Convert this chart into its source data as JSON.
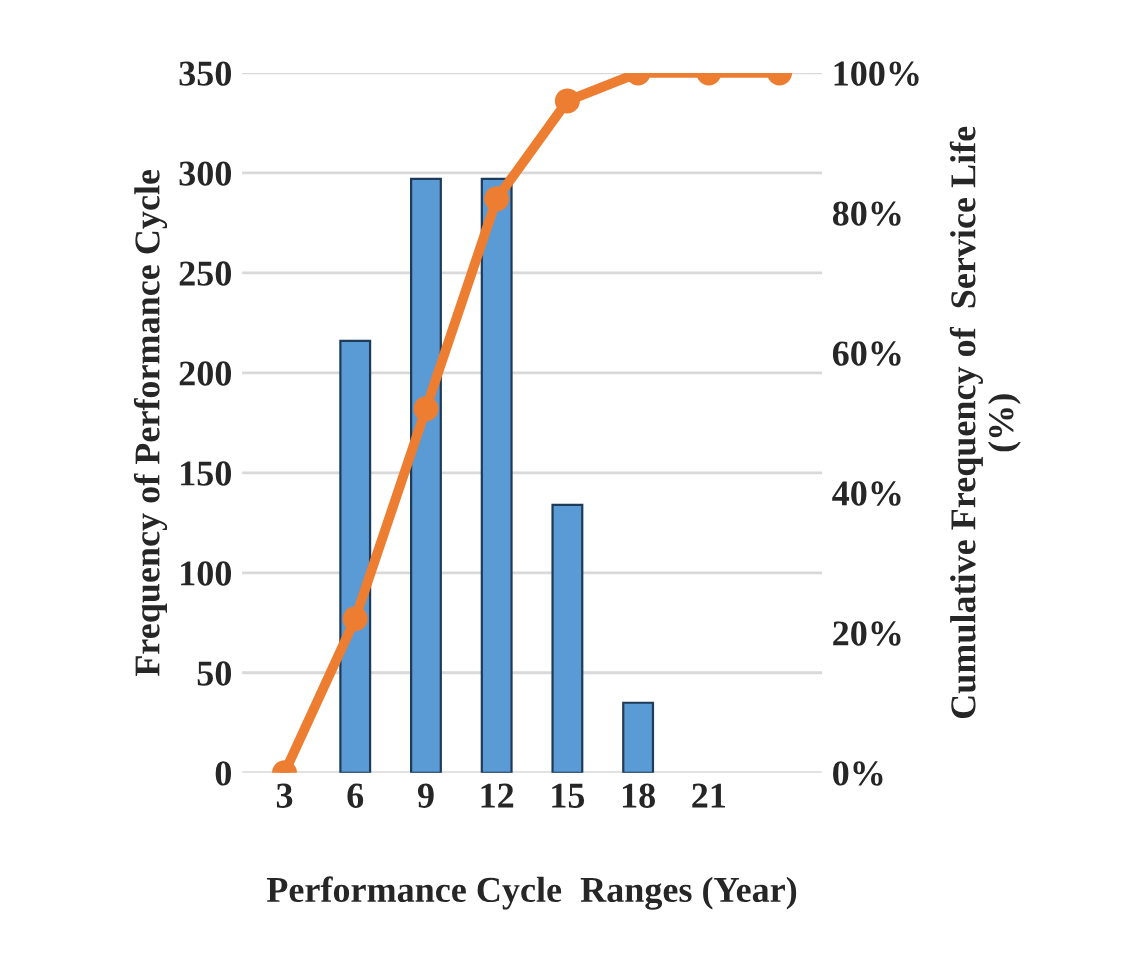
{
  "chart_data": {
    "type": "bar",
    "xlabel": "Performance Cycle  Ranges (Year)",
    "ylabel": "Frequency of Performance Cycle",
    "y2label": "Cumulative Frequency of  Service Life\n(%)",
    "categories": [
      "3",
      "6",
      "9",
      "12",
      "15",
      "18",
      "21",
      null
    ],
    "series": [
      {
        "color": "#5b9bd5",
        "values": [
          null,
          216,
          297,
          297,
          134,
          35,
          null,
          null
        ]
      },
      {
        "type": "line",
        "axis": "y2",
        "color": "#ed7d31",
        "marker": "circle",
        "values": [
          0,
          22,
          52,
          82,
          96,
          100,
          100,
          100
        ]
      }
    ],
    "ylim": [
      0,
      350
    ],
    "yticks": [
      0,
      50,
      100,
      150,
      200,
      250,
      300,
      350
    ],
    "y2lim": [
      0,
      100
    ],
    "y2ticks": [
      {
        "value": 0,
        "label": "0%"
      },
      {
        "value": 20,
        "label": "20%"
      },
      {
        "value": 40,
        "label": "40%"
      },
      {
        "value": 60,
        "label": "60%"
      },
      {
        "value": 80,
        "label": "80%"
      },
      {
        "value": 100,
        "label": "100%"
      }
    ],
    "grid": "y",
    "legend": false
  }
}
